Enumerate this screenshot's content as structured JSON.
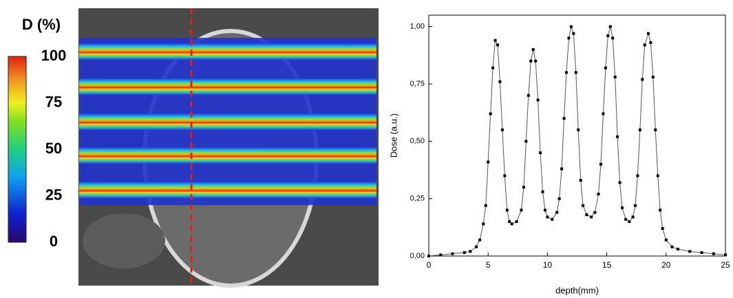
{
  "colorbar": {
    "title": "D (%)",
    "range": [
      0,
      100
    ],
    "ticks": [
      0,
      25,
      50,
      75,
      100
    ]
  },
  "chart_data": {
    "type": "line",
    "xlabel": "depth(mm)",
    "ylabel": "Dose (a.u.)",
    "color": "#555555",
    "marker_color": "#000000",
    "x": [
      0,
      1,
      2,
      3,
      3.5,
      4,
      4.3,
      4.6,
      4.8,
      5.0,
      5.2,
      5.4,
      5.6,
      5.8,
      6.0,
      6.2,
      6.4,
      6.6,
      6.8,
      7.0,
      7.4,
      7.8,
      8.0,
      8.2,
      8.4,
      8.6,
      8.8,
      9.0,
      9.2,
      9.4,
      9.6,
      9.8,
      10.0,
      10.4,
      10.8,
      11.0,
      11.2,
      11.4,
      11.6,
      11.8,
      12.0,
      12.2,
      12.4,
      12.6,
      12.8,
      13.0,
      13.3,
      13.7,
      14.0,
      14.3,
      14.5,
      14.7,
      14.9,
      15.1,
      15.3,
      15.5,
      15.7,
      15.9,
      16.1,
      16.3,
      16.6,
      16.9,
      17.2,
      17.4,
      17.6,
      17.8,
      18.0,
      18.2,
      18.5,
      18.7,
      18.9,
      19.1,
      19.3,
      19.5,
      19.7,
      20.0,
      20.5,
      21,
      22,
      23,
      24,
      25
    ],
    "values": [
      0,
      0.005,
      0.01,
      0.015,
      0.02,
      0.04,
      0.07,
      0.14,
      0.22,
      0.41,
      0.62,
      0.82,
      0.94,
      0.92,
      0.76,
      0.55,
      0.35,
      0.2,
      0.15,
      0.14,
      0.15,
      0.2,
      0.3,
      0.5,
      0.7,
      0.85,
      0.9,
      0.85,
      0.68,
      0.45,
      0.28,
      0.2,
      0.17,
      0.16,
      0.19,
      0.25,
      0.38,
      0.6,
      0.8,
      0.95,
      1.0,
      0.97,
      0.8,
      0.55,
      0.33,
      0.22,
      0.18,
      0.17,
      0.19,
      0.27,
      0.4,
      0.62,
      0.82,
      0.96,
      1.0,
      0.95,
      0.78,
      0.52,
      0.32,
      0.21,
      0.16,
      0.15,
      0.17,
      0.22,
      0.35,
      0.55,
      0.77,
      0.92,
      0.97,
      0.93,
      0.78,
      0.55,
      0.35,
      0.2,
      0.12,
      0.07,
      0.04,
      0.03,
      0.02,
      0.015,
      0.01,
      0.005
    ],
    "xlim": [
      0,
      25
    ],
    "ylim": [
      0,
      1.05
    ],
    "xticks": [
      0,
      5,
      10,
      15,
      20,
      25
    ],
    "yticks": [
      {
        "value": 0,
        "label": "0,00"
      },
      {
        "value": 0.25,
        "label": "0,25"
      },
      {
        "value": 0.5,
        "label": "0,50"
      },
      {
        "value": 0.75,
        "label": "0,75"
      },
      {
        "value": 1,
        "label": "1,00"
      }
    ]
  }
}
